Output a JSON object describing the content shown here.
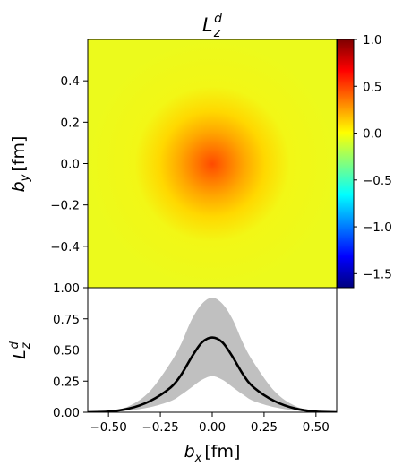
{
  "chart_data": [
    {
      "type": "heatmap",
      "title": {
        "base": "L",
        "sub": "z",
        "sup": "d"
      },
      "xlabel": "",
      "ylabel": {
        "base": "b",
        "sub": "y",
        "unit": "[fm]"
      },
      "xlim": [
        -0.6,
        0.6
      ],
      "ylim": [
        -0.6,
        0.6
      ],
      "yticks": [
        {
          "value": 0.4,
          "label": "0.4"
        },
        {
          "value": 0.2,
          "label": "0.2"
        },
        {
          "value": 0.0,
          "label": "0.0"
        },
        {
          "value": -0.2,
          "label": "−0.2"
        },
        {
          "value": -0.4,
          "label": "−0.4"
        }
      ],
      "field": {
        "peak": 0.6,
        "center": [
          0,
          0
        ],
        "half_width": 0.2,
        "shape": "radial, peaked at origin, decaying to ~0"
      },
      "colorbar": {
        "colormap": "jet",
        "range": [
          -1.65,
          1.0
        ],
        "ticks": [
          {
            "value": 1.0,
            "label": "1.0"
          },
          {
            "value": 0.5,
            "label": "0.5"
          },
          {
            "value": 0.0,
            "label": "0.0"
          },
          {
            "value": -0.5,
            "label": "−0.5"
          },
          {
            "value": -1.0,
            "label": "−1.0"
          },
          {
            "value": -1.5,
            "label": "−1.5"
          }
        ]
      }
    },
    {
      "type": "line",
      "title": "",
      "xlabel": {
        "base": "b",
        "sub": "x",
        "unit": "[fm]"
      },
      "ylabel": {
        "base": "L",
        "sub": "z",
        "sup": "d"
      },
      "xlim": [
        -0.6,
        0.6
      ],
      "ylim": [
        0.0,
        1.0
      ],
      "xticks": [
        {
          "value": -0.5,
          "label": "−0.50"
        },
        {
          "value": -0.25,
          "label": "−0.25"
        },
        {
          "value": 0.0,
          "label": "0.00"
        },
        {
          "value": 0.25,
          "label": "0.25"
        },
        {
          "value": 0.5,
          "label": "0.50"
        }
      ],
      "yticks": [
        {
          "value": 1.0,
          "label": "1.00"
        },
        {
          "value": 0.75,
          "label": "0.75"
        },
        {
          "value": 0.5,
          "label": "0.50"
        },
        {
          "value": 0.25,
          "label": "0.25"
        },
        {
          "value": 0.0,
          "label": "0.00"
        }
      ],
      "x": [
        -0.6,
        -0.5,
        -0.4,
        -0.3,
        -0.2,
        -0.15,
        -0.1,
        -0.05,
        0.0,
        0.05,
        0.1,
        0.15,
        0.2,
        0.3,
        0.4,
        0.5,
        0.6
      ],
      "series": [
        {
          "role": "central",
          "color": "#000000",
          "values": [
            0.0,
            0.005,
            0.03,
            0.09,
            0.2,
            0.3,
            0.44,
            0.56,
            0.6,
            0.56,
            0.44,
            0.3,
            0.2,
            0.09,
            0.03,
            0.005,
            0.0
          ]
        },
        {
          "role": "band-upper",
          "color": "#c0c0c0",
          "values": [
            0.0,
            0.01,
            0.05,
            0.17,
            0.4,
            0.55,
            0.74,
            0.87,
            0.92,
            0.87,
            0.74,
            0.55,
            0.4,
            0.17,
            0.05,
            0.01,
            0.0
          ]
        },
        {
          "role": "band-lower",
          "color": "#c0c0c0",
          "values": [
            0.0,
            0.0,
            0.015,
            0.04,
            0.09,
            0.14,
            0.2,
            0.26,
            0.29,
            0.26,
            0.2,
            0.14,
            0.09,
            0.04,
            0.015,
            0.0,
            0.0
          ]
        }
      ]
    }
  ]
}
